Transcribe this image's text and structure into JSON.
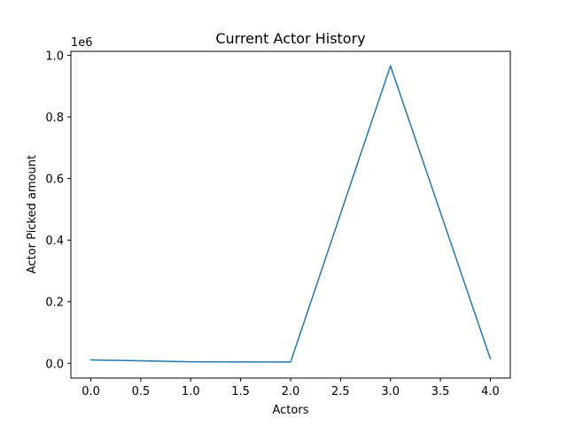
{
  "chart_data": {
    "type": "line",
    "title": "Current Actor History",
    "xlabel": "Actors",
    "ylabel": "Actor Picked amount",
    "y_offset_label": "1e6",
    "xlim": [
      -0.2,
      4.2
    ],
    "ylim": [
      -0.048,
      1.013
    ],
    "x_ticks": [
      0.0,
      0.5,
      1.0,
      1.5,
      2.0,
      2.5,
      3.0,
      3.5,
      4.0
    ],
    "x_tick_labels": [
      "0.0",
      "0.5",
      "1.0",
      "1.5",
      "2.0",
      "2.5",
      "3.0",
      "3.5",
      "4.0"
    ],
    "y_ticks": [
      0.0,
      0.2,
      0.4,
      0.6,
      0.8,
      1.0
    ],
    "y_tick_labels": [
      "0.0",
      "0.2",
      "0.4",
      "0.6",
      "0.8",
      "1.0"
    ],
    "grid": false,
    "legend": "none",
    "series": [
      {
        "color": "#1f77b4",
        "x": [
          0,
          1,
          2,
          3,
          4
        ],
        "y": [
          0.011,
          0.005,
          0.004,
          0.966,
          0.015
        ]
      }
    ]
  }
}
